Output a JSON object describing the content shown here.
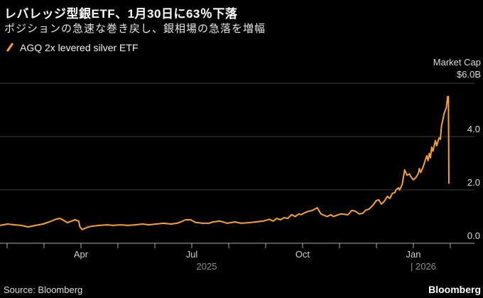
{
  "header": {
    "title": "レバレッジ型銀ETF、1月30日に63％下落",
    "subtitle": "ポジションの急速な巻き戻し、銀相場の急落を増幅"
  },
  "legend": {
    "series_label": "AGQ 2x levered silver ETF",
    "marker": "orange-slash"
  },
  "axis": {
    "right_title": "Market Cap",
    "top_label": "$6.0B",
    "y_labels": [
      "4.0",
      "2.0",
      "0.0"
    ],
    "months": [
      {
        "label": "Apr",
        "tick_index": 2
      },
      {
        "label": "Jul",
        "tick_index": 5
      },
      {
        "label": "Oct",
        "tick_index": 8
      },
      {
        "label": "Jan",
        "tick_index": 11
      }
    ],
    "years": {
      "left": "2025",
      "right": "| 2026"
    }
  },
  "footer": {
    "source": "Source: Bloomberg",
    "brand": "Bloomberg"
  },
  "colors": {
    "background": "#000000",
    "line": "#F7A22E",
    "grid": "#3B3B3B",
    "axis_line": "#ABABAB",
    "title_text": "#FFFFFF",
    "muted_text": "#8F8F8F"
  },
  "chart_data": {
    "type": "line",
    "title": "レバレッジ型銀ETF、1月30日に63％下落",
    "subtitle": "ポジションの急速な巻き戻し、銀相場の急落を増幅",
    "legend_position": "top-left",
    "grid": true,
    "ylabel": "Market Cap ($B)",
    "ylim": [
      0,
      6
    ],
    "y_gridlines": [
      0,
      2,
      4,
      6
    ],
    "x_axis": {
      "start_date": "2025-01-30",
      "end_date": "2026-01-30",
      "days_span": 365,
      "tick_months": [
        "Feb",
        "Mar",
        "Apr",
        "May",
        "Jun",
        "Jul",
        "Aug",
        "Sep",
        "Oct",
        "Nov",
        "Dec",
        "Jan",
        "Feb"
      ],
      "labeled_ticks": [
        "Apr",
        "Jul",
        "Oct",
        "Jan"
      ]
    },
    "series": [
      {
        "name": "AGQ 2x levered silver ETF",
        "unit": "$B",
        "color": "#F7A22E",
        "points_day_value": [
          [
            0,
            0.67
          ],
          [
            6,
            0.72
          ],
          [
            12,
            0.69
          ],
          [
            17,
            0.67
          ],
          [
            23,
            0.61
          ],
          [
            29,
            0.67
          ],
          [
            35,
            0.72
          ],
          [
            40,
            0.8
          ],
          [
            46,
            0.91
          ],
          [
            49,
            0.93
          ],
          [
            52,
            0.85
          ],
          [
            55,
            0.77
          ],
          [
            58,
            0.83
          ],
          [
            61,
            0.88
          ],
          [
            64,
            0.83
          ],
          [
            65,
            0.61
          ],
          [
            67,
            0.51
          ],
          [
            69,
            0.56
          ],
          [
            72,
            0.61
          ],
          [
            75,
            0.64
          ],
          [
            81,
            0.67
          ],
          [
            87,
            0.69
          ],
          [
            92,
            0.67
          ],
          [
            98,
            0.69
          ],
          [
            104,
            0.67
          ],
          [
            110,
            0.69
          ],
          [
            116,
            0.72
          ],
          [
            121,
            0.69
          ],
          [
            127,
            0.72
          ],
          [
            133,
            0.75
          ],
          [
            139,
            0.72
          ],
          [
            144,
            0.75
          ],
          [
            147,
            0.8
          ],
          [
            151,
            0.88
          ],
          [
            155,
            0.88
          ],
          [
            159,
            0.78
          ],
          [
            165,
            0.75
          ],
          [
            170,
            0.75
          ],
          [
            173,
            0.8
          ],
          [
            179,
            0.83
          ],
          [
            185,
            0.75
          ],
          [
            191,
            0.8
          ],
          [
            196,
            0.75
          ],
          [
            202,
            0.77
          ],
          [
            208,
            0.8
          ],
          [
            214,
            0.83
          ],
          [
            219,
            0.9
          ],
          [
            222,
            0.83
          ],
          [
            225,
            0.93
          ],
          [
            228,
            0.88
          ],
          [
            231,
            0.96
          ],
          [
            234,
            0.93
          ],
          [
            237,
            1.07
          ],
          [
            240,
            1.0
          ],
          [
            243,
            1.1
          ],
          [
            245,
            1.07
          ],
          [
            248,
            1.15
          ],
          [
            251,
            1.2
          ],
          [
            254,
            1.23
          ],
          [
            258,
            1.33
          ],
          [
            261,
            1.1
          ],
          [
            266,
            1.0
          ],
          [
            269,
            1.07
          ],
          [
            271,
            1.0
          ],
          [
            277,
            1.1
          ],
          [
            283,
            1.07
          ],
          [
            286,
            1.23
          ],
          [
            289,
            1.2
          ],
          [
            292,
            1.1
          ],
          [
            295,
            1.12
          ],
          [
            297,
            1.23
          ],
          [
            300,
            1.28
          ],
          [
            303,
            1.41
          ],
          [
            306,
            1.6
          ],
          [
            308,
            1.63
          ],
          [
            310,
            1.47
          ],
          [
            312,
            1.55
          ],
          [
            314,
            1.68
          ],
          [
            315,
            1.76
          ],
          [
            317,
            1.68
          ],
          [
            319,
            1.87
          ],
          [
            321,
            1.9
          ],
          [
            322,
            2.0
          ],
          [
            324,
            2.08
          ],
          [
            325,
            2.0
          ],
          [
            327,
            2.2
          ],
          [
            329,
            2.75
          ],
          [
            331,
            2.55
          ],
          [
            333,
            2.6
          ],
          [
            334,
            2.5
          ],
          [
            336,
            2.38
          ],
          [
            338,
            2.45
          ],
          [
            340,
            2.6
          ],
          [
            341,
            2.8
          ],
          [
            342,
            2.65
          ],
          [
            344,
            2.85
          ],
          [
            345,
            3.0
          ],
          [
            347,
            3.28
          ],
          [
            348,
            3.1
          ],
          [
            349,
            3.37
          ],
          [
            350,
            3.2
          ],
          [
            351,
            3.6
          ],
          [
            352,
            3.45
          ],
          [
            354,
            3.85
          ],
          [
            355,
            3.65
          ],
          [
            357,
            3.95
          ],
          [
            358,
            3.9
          ],
          [
            359,
            4.4
          ],
          [
            360,
            4.6
          ],
          [
            361,
            4.85
          ],
          [
            363,
            5.1
          ],
          [
            364,
            5.5
          ],
          [
            364.6,
            5.5
          ],
          [
            365,
            2.25
          ]
        ]
      }
    ]
  }
}
